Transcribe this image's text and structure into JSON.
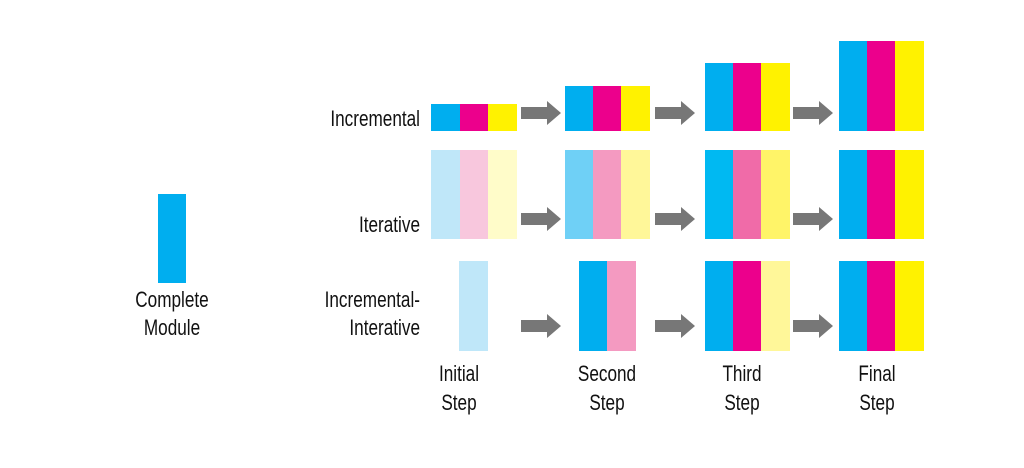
{
  "colors": {
    "cyan": "#00aeef",
    "magenta": "#ec008c",
    "yellow": "#fff200",
    "arrow": "#777777",
    "cyan_faint": "#bfe7f9",
    "magenta_faint": "#f8c7dd",
    "yellow_faint": "#fffcc9",
    "cyan_mid": "#6fd0f6",
    "magenta_mid": "#f49ac1",
    "yellow_mid": "#fff799",
    "cyan_strong": "#00b9f2",
    "magenta_strong": "#f06ba8",
    "yellow_strong": "#fff468"
  },
  "legend": {
    "label_line1": "Complete",
    "label_line2": "Module"
  },
  "rows": {
    "incremental": {
      "label": "Incremental"
    },
    "iterative": {
      "label": "Iterative"
    },
    "incremental_iterative": {
      "label_line1": "Incremental-",
      "label_line2": "Interative"
    }
  },
  "steps": {
    "initial": {
      "line1": "Initial",
      "line2": "Step"
    },
    "second": {
      "line1": "Second",
      "line2": "Step"
    },
    "third": {
      "line1": "Third",
      "line2": "Step"
    },
    "final": {
      "line1": "Final",
      "line2": "Step"
    }
  },
  "icons": {
    "arrow": "right-arrow-icon"
  }
}
